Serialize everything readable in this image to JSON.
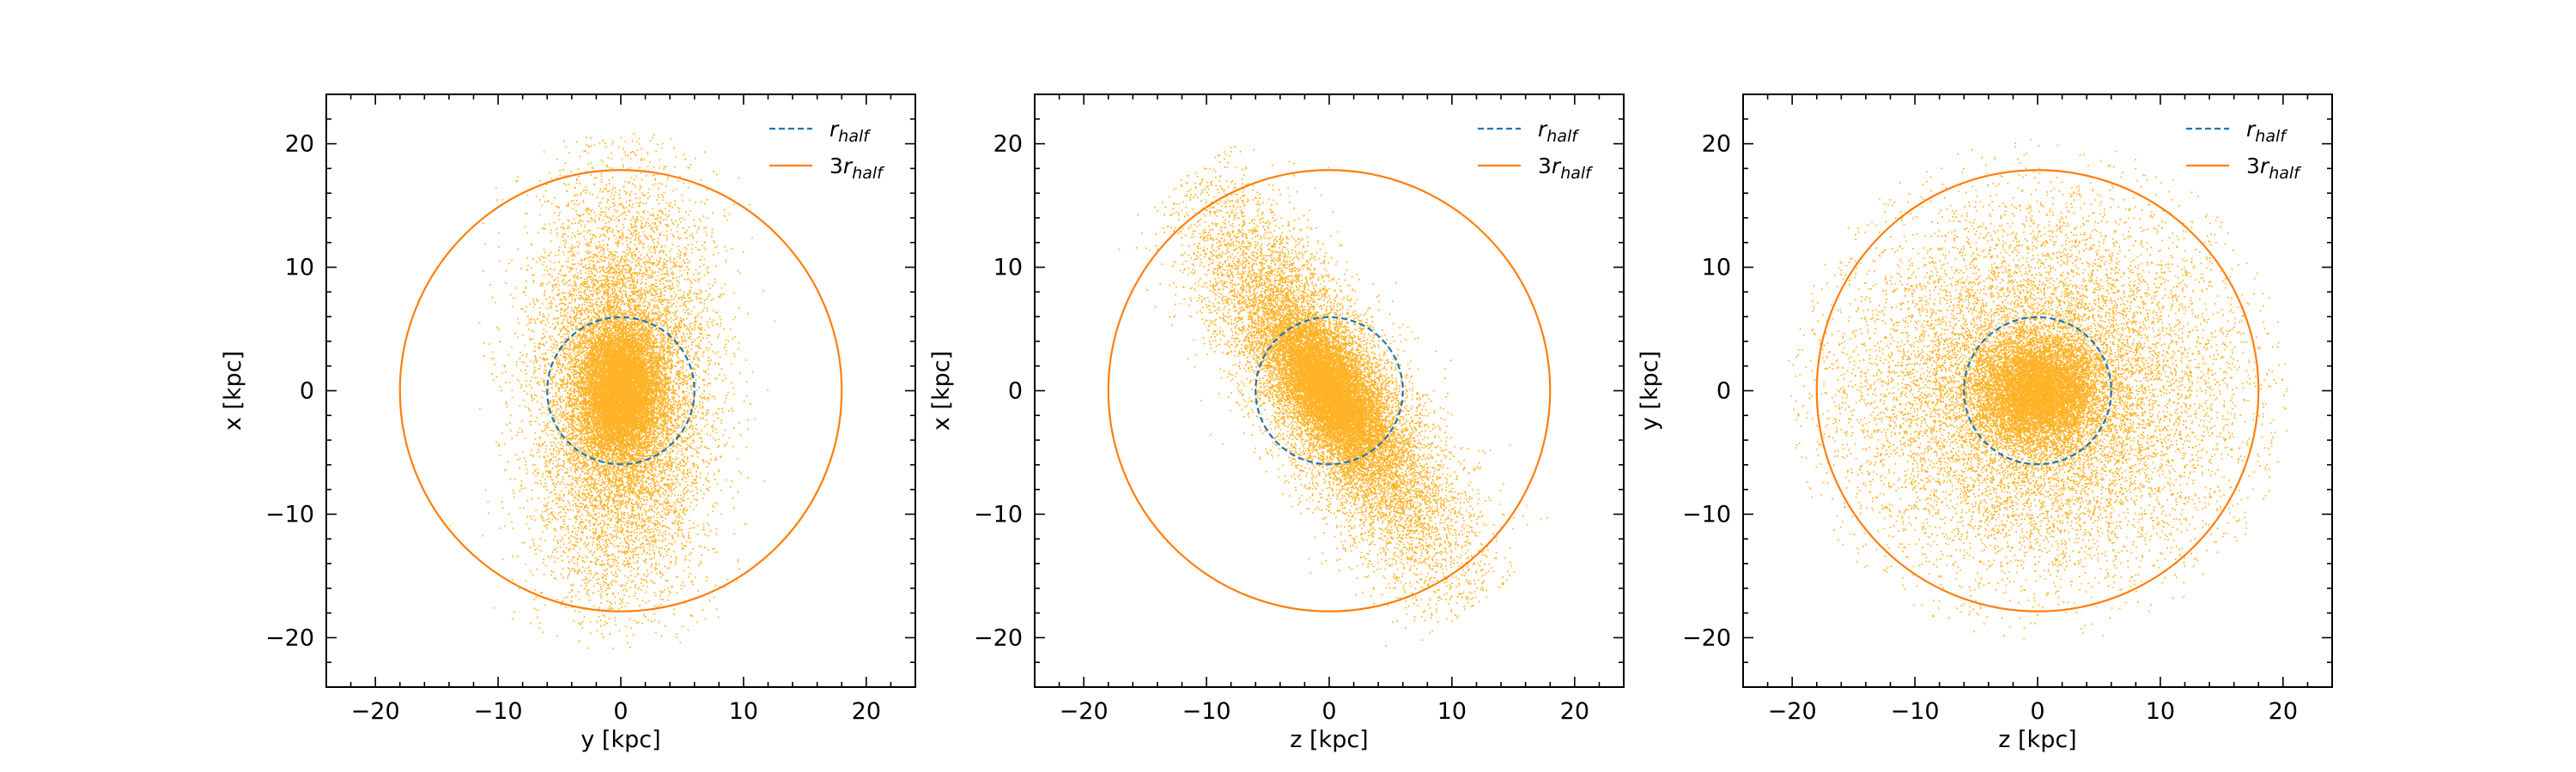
{
  "colors": {
    "particles": "#ffa500",
    "r_half": "#1f77b4",
    "three_r_half": "#ff7f0e",
    "axes": "#000000"
  },
  "legend": {
    "r_half": {
      "base": "r",
      "sub": "half"
    },
    "three_r_half": {
      "prefix": "3",
      "base": "r",
      "sub": "half"
    }
  },
  "chart_data": [
    {
      "type": "scatter",
      "xlabel": "y [kpc]",
      "ylabel": "x [kpc]",
      "xlim": [
        -24,
        24
      ],
      "ylim": [
        -24,
        24
      ],
      "xticks": [
        -20,
        -10,
        0,
        10,
        20
      ],
      "yticks": [
        -20,
        -10,
        0,
        10,
        20
      ],
      "legend_position": "top-right",
      "grid": false,
      "circles": [
        {
          "name": "r_half",
          "radius": 6,
          "style": "dashed"
        },
        {
          "name": "3r_half",
          "radius": 18,
          "style": "solid"
        }
      ],
      "particles": {
        "approx_count": 20000,
        "distribution": "core concentrated at origin, elongated along x (std y≈3.5 kpc, x≈8 kpc), extent ~20 kpc"
      }
    },
    {
      "type": "scatter",
      "xlabel": "z [kpc]",
      "ylabel": "x [kpc]",
      "xlim": [
        -24,
        24
      ],
      "ylim": [
        -24,
        24
      ],
      "xticks": [
        -20,
        -10,
        0,
        10,
        20
      ],
      "yticks": [
        -20,
        -10,
        0,
        10,
        20
      ],
      "legend_position": "top-right",
      "grid": false,
      "circles": [
        {
          "name": "r_half",
          "radius": 6,
          "style": "dashed"
        },
        {
          "name": "3r_half",
          "radius": 18,
          "style": "solid"
        }
      ],
      "particles": {
        "approx_count": 20000,
        "distribution": "elongated band along the diagonal from (-10, 17) to (10, -16), core at origin"
      }
    },
    {
      "type": "scatter",
      "xlabel": "z [kpc]",
      "ylabel": "y [kpc]",
      "xlim": [
        -24,
        24
      ],
      "ylim": [
        -24,
        24
      ],
      "xticks": [
        -20,
        -10,
        0,
        10,
        20
      ],
      "yticks": [
        -20,
        -10,
        0,
        10,
        20
      ],
      "legend_position": "top-right",
      "grid": false,
      "circles": [
        {
          "name": "r_half",
          "radius": 6,
          "style": "dashed"
        },
        {
          "name": "3r_half",
          "radius": 18,
          "style": "solid"
        }
      ],
      "particles": {
        "approx_count": 20000,
        "distribution": "nearly round, core concentrated at origin, halo filling the 3r_half circle"
      }
    }
  ]
}
